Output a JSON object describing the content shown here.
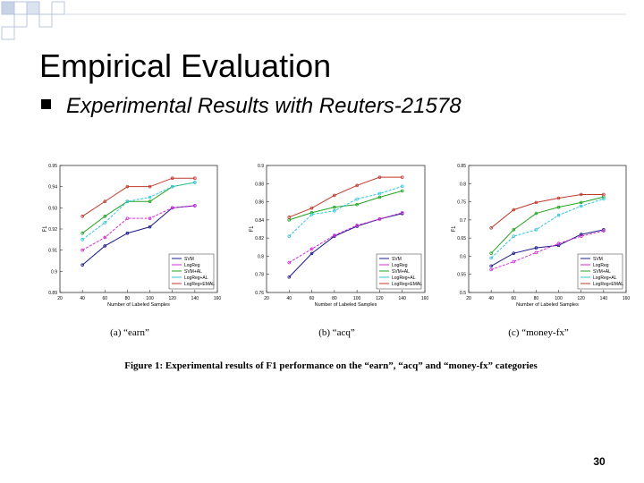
{
  "slide": {
    "title": "Empirical Evaluation",
    "bullet": "Experimental Results with Reuters-21578",
    "page_number": "30"
  },
  "figure_caption": "Figure 1: Experimental results of F1 performance on the “earn”, “acq” and “money-fx” categories",
  "chart_data": [
    {
      "type": "line",
      "title": "(a) “earn”",
      "x_label": "Number of Labeled Samples",
      "y_label": "F1",
      "x": [
        40,
        60,
        80,
        100,
        120,
        140
      ],
      "xlim": [
        20,
        160
      ],
      "xticks": [
        20,
        40,
        60,
        80,
        100,
        120,
        140,
        160
      ],
      "ylim": [
        0.89,
        0.95
      ],
      "yticks": [
        0.89,
        0.9,
        0.91,
        0.92,
        0.93,
        0.94,
        0.95
      ],
      "legend": "lower right",
      "series": [
        {
          "name": "SVM",
          "color": "#1a1a8c",
          "values": [
            0.903,
            0.912,
            0.918,
            0.921,
            0.93,
            0.931
          ]
        },
        {
          "name": "LogReg",
          "color": "#d62ad6",
          "values": [
            0.91,
            0.916,
            0.925,
            0.925,
            0.93,
            0.931
          ]
        },
        {
          "name": "SVM+AL",
          "color": "#22a322",
          "values": [
            0.918,
            0.926,
            0.933,
            0.933,
            0.94,
            0.942
          ]
        },
        {
          "name": "LogReg+AL",
          "color": "#33c6d9",
          "values": [
            0.915,
            0.923,
            0.933,
            0.935,
            0.94,
            0.942
          ]
        },
        {
          "name": "LogReg+EMAL",
          "color": "#c0392b",
          "values": [
            0.926,
            0.933,
            0.94,
            0.94,
            0.944,
            0.944
          ]
        }
      ]
    },
    {
      "type": "line",
      "title": "(b) “acq”",
      "x_label": "Number of Labeled Samples",
      "y_label": "F1",
      "x": [
        40,
        60,
        80,
        100,
        120,
        140
      ],
      "xlim": [
        20,
        160
      ],
      "xticks": [
        20,
        40,
        60,
        80,
        100,
        120,
        140,
        160
      ],
      "ylim": [
        0.76,
        0.9
      ],
      "yticks": [
        0.76,
        0.78,
        0.8,
        0.82,
        0.84,
        0.86,
        0.88,
        0.9
      ],
      "legend": "lower right",
      "series": [
        {
          "name": "SVM",
          "color": "#1a1a8c",
          "values": [
            0.777,
            0.803,
            0.822,
            0.833,
            0.841,
            0.847
          ]
        },
        {
          "name": "LogReg",
          "color": "#d62ad6",
          "values": [
            0.793,
            0.808,
            0.823,
            0.834,
            0.841,
            0.848
          ]
        },
        {
          "name": "SVM+AL",
          "color": "#22a322",
          "values": [
            0.84,
            0.848,
            0.854,
            0.857,
            0.865,
            0.872
          ]
        },
        {
          "name": "LogReg+AL",
          "color": "#33c6d9",
          "values": [
            0.822,
            0.846,
            0.85,
            0.863,
            0.869,
            0.877
          ]
        },
        {
          "name": "LogReg+EMAL",
          "color": "#c0392b",
          "values": [
            0.843,
            0.853,
            0.867,
            0.878,
            0.887,
            0.887
          ]
        }
      ]
    },
    {
      "type": "line",
      "title": "(c) “money-fx”",
      "x_label": "Number of Labeled Samples",
      "y_label": "F1",
      "x": [
        40,
        60,
        80,
        100,
        120,
        140
      ],
      "xlim": [
        20,
        160
      ],
      "xticks": [
        20,
        40,
        60,
        80,
        100,
        120,
        140,
        160
      ],
      "ylim": [
        0.5,
        0.85
      ],
      "yticks": [
        0.5,
        0.55,
        0.6,
        0.65,
        0.7,
        0.75,
        0.8,
        0.85
      ],
      "legend": "lower right",
      "series": [
        {
          "name": "SVM",
          "color": "#1a1a8c",
          "values": [
            0.573,
            0.608,
            0.623,
            0.63,
            0.66,
            0.673
          ]
        },
        {
          "name": "LogReg",
          "color": "#d62ad6",
          "values": [
            0.563,
            0.585,
            0.61,
            0.635,
            0.655,
            0.67
          ]
        },
        {
          "name": "SVM+AL",
          "color": "#22a322",
          "values": [
            0.608,
            0.673,
            0.718,
            0.735,
            0.748,
            0.763
          ]
        },
        {
          "name": "LogReg+AL",
          "color": "#33c6d9",
          "values": [
            0.595,
            0.655,
            0.673,
            0.713,
            0.738,
            0.758
          ]
        },
        {
          "name": "LogReg+EMAL",
          "color": "#c0392b",
          "values": [
            0.678,
            0.728,
            0.748,
            0.76,
            0.77,
            0.77
          ]
        }
      ]
    }
  ]
}
